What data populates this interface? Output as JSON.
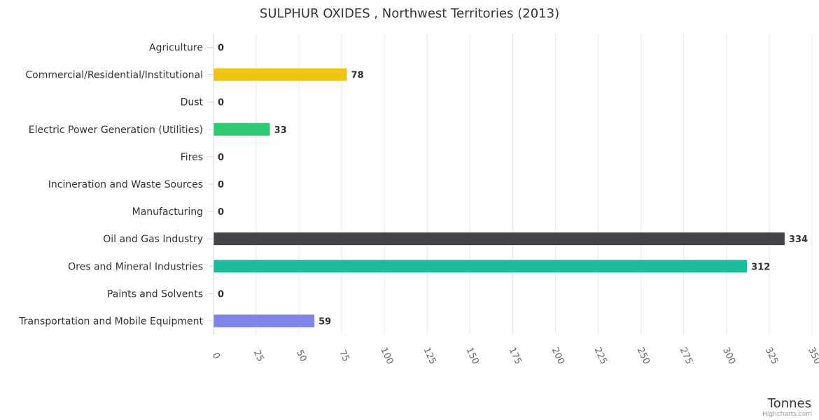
{
  "chart_data": {
    "type": "bar",
    "orientation": "horizontal",
    "title": "SULPHUR OXIDES , Northwest Territories (2013)",
    "categories": [
      "Agriculture",
      "Commercial/Residential/Institutional",
      "Dust",
      "Electric Power Generation (Utilities)",
      "Fires",
      "Incineration and Waste Sources",
      "Manufacturing",
      "Oil and Gas Industry",
      "Ores and Mineral Industries",
      "Paints and Solvents",
      "Transportation and Mobile Equipment"
    ],
    "values": [
      0,
      78,
      0,
      33,
      0,
      0,
      0,
      334,
      312,
      0,
      59
    ],
    "colors": [
      "#7cb5ec",
      "#f1c40f",
      "#7cb5ec",
      "#2ecc71",
      "#7cb5ec",
      "#7cb5ec",
      "#7cb5ec",
      "#434348",
      "#1abc9c",
      "#7cb5ec",
      "#8085e9"
    ],
    "xlabel": "Tonnes",
    "ylabel": "",
    "xlim": [
      0,
      350
    ],
    "ticks": [
      0,
      25,
      50,
      75,
      100,
      125,
      150,
      175,
      200,
      225,
      250,
      275,
      300,
      325,
      350
    ],
    "grid": true,
    "legend": "none"
  },
  "credits": "Highcharts.com"
}
